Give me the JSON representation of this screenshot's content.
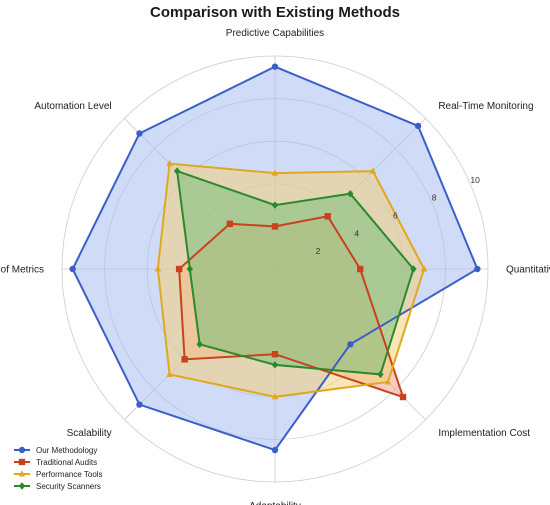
{
  "chart_data": {
    "type": "radar",
    "title": "Comparison with Existing Methods",
    "axes": [
      "Predictive Capabilities",
      "Real-Time Monitoring",
      "Quantitative Precision",
      "Implementation Cost",
      "Adaptability",
      "Scalability",
      "Integration of Metrics",
      "Automation Level"
    ],
    "rlim": [
      0,
      10
    ],
    "rticks": [
      2,
      4,
      6,
      8,
      10
    ],
    "grid": true,
    "legend_position": "bottom-left",
    "series": [
      {
        "name": "Our Methodology",
        "color": "#3b5fc8",
        "fill": "#a9bff0",
        "marker": "circle",
        "values": [
          9.5,
          9.5,
          9.5,
          5.0,
          8.5,
          9.0,
          9.5,
          9.0
        ]
      },
      {
        "name": "Traditional Audits",
        "color": "#c8421c",
        "fill": "#f2a38f",
        "marker": "square",
        "values": [
          2.0,
          3.5,
          4.0,
          8.5,
          4.0,
          6.0,
          4.5,
          3.0
        ]
      },
      {
        "name": "Performance Tools",
        "color": "#e0a820",
        "fill": "#f2cf7d",
        "marker": "triangle",
        "values": [
          4.5,
          6.5,
          7.0,
          7.5,
          6.0,
          7.0,
          5.5,
          7.0
        ]
      },
      {
        "name": "Security Scanners",
        "color": "#2a8a2a",
        "fill": "#7cbf7c",
        "marker": "diamond",
        "values": [
          3.0,
          5.0,
          6.5,
          7.0,
          4.5,
          5.0,
          4.0,
          6.5
        ]
      }
    ]
  }
}
